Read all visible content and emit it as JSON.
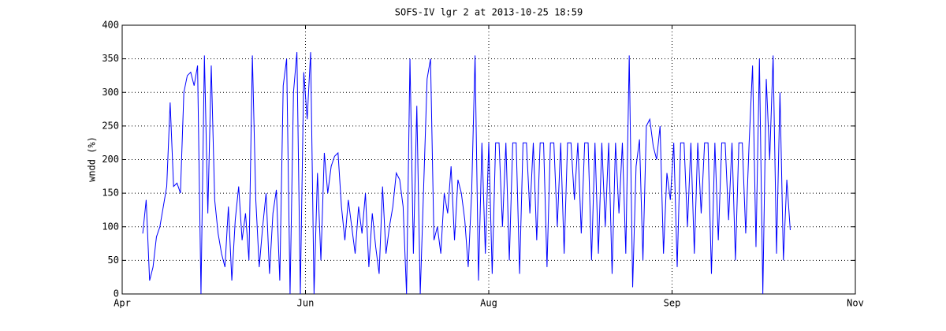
{
  "chart_data": {
    "type": "line",
    "title": "SOFS-IV lgr 2 at 2013-10-25 18:59",
    "y_label": "wndd (%)",
    "x": [
      6,
      7,
      8,
      9,
      10,
      11,
      12,
      13,
      14,
      15,
      16,
      17,
      18,
      19,
      20,
      21,
      22,
      23,
      24,
      25,
      26,
      27,
      28,
      29,
      30,
      31,
      32,
      33,
      34,
      35,
      36,
      37,
      38,
      39,
      40,
      41,
      42,
      43,
      44,
      45,
      46,
      47,
      48,
      49,
      50,
      51,
      52,
      53,
      54,
      55,
      56,
      57,
      58,
      59,
      60,
      61,
      62,
      63,
      64,
      65,
      66,
      67,
      68,
      69,
      70,
      71,
      72,
      73,
      74,
      75,
      76,
      77,
      78,
      79,
      80,
      81,
      82,
      83,
      84,
      85,
      86,
      87,
      88,
      89,
      90,
      91,
      92,
      93,
      94,
      95,
      96,
      97,
      98,
      99,
      100,
      101,
      102,
      103,
      104,
      105,
      106,
      107,
      108,
      109,
      110,
      111,
      112,
      113,
      114,
      115,
      116,
      117,
      118,
      119,
      120,
      121,
      122,
      123,
      124,
      125,
      126,
      127,
      128,
      129,
      130,
      131,
      132,
      133,
      134,
      135,
      136,
      137,
      138,
      139,
      140,
      141,
      142,
      143,
      144,
      145,
      146,
      147,
      148,
      149,
      150,
      151,
      152,
      153,
      154,
      155,
      156,
      157,
      158,
      159,
      160,
      161,
      162,
      163,
      164,
      165,
      166,
      167,
      168,
      169,
      170,
      171,
      172,
      173,
      174,
      175,
      176,
      177,
      178,
      179,
      180,
      181,
      182,
      183,
      184,
      185,
      186,
      187,
      188,
      189,
      190,
      191,
      192,
      193,
      194,
      195
    ],
    "series": [
      {
        "name": "wndd",
        "color": "#0000ff",
        "values": [
          90,
          140,
          20,
          40,
          85,
          100,
          130,
          160,
          285,
          160,
          165,
          150,
          300,
          325,
          330,
          310,
          340,
          0,
          355,
          120,
          340,
          140,
          90,
          60,
          40,
          130,
          20,
          110,
          160,
          80,
          120,
          50,
          355,
          140,
          40,
          100,
          150,
          30,
          120,
          155,
          20,
          310,
          350,
          0,
          300,
          360,
          0,
          330,
          260,
          360,
          0,
          180,
          50,
          210,
          150,
          190,
          205,
          210,
          130,
          80,
          140,
          100,
          60,
          130,
          90,
          150,
          40,
          120,
          70,
          30,
          160,
          60,
          100,
          130,
          180,
          170,
          130,
          0,
          350,
          60,
          280,
          0,
          160,
          320,
          350,
          80,
          100,
          60,
          150,
          120,
          190,
          80,
          170,
          150,
          110,
          40,
          150,
          355,
          20,
          225,
          60,
          225,
          30,
          225,
          225,
          100,
          225,
          50,
          225,
          225,
          30,
          225,
          225,
          120,
          225,
          80,
          225,
          225,
          40,
          225,
          225,
          100,
          225,
          60,
          225,
          225,
          140,
          225,
          90,
          225,
          225,
          50,
          225,
          60,
          225,
          100,
          225,
          30,
          225,
          120,
          225,
          60,
          355,
          10,
          190,
          230,
          50,
          250,
          260,
          220,
          200,
          250,
          60,
          180,
          140,
          225,
          40,
          225,
          225,
          100,
          225,
          60,
          225,
          120,
          225,
          225,
          30,
          225,
          80,
          225,
          225,
          110,
          225,
          50,
          225,
          225,
          90,
          225,
          340,
          70,
          350,
          0,
          320,
          200,
          355,
          60,
          300,
          50,
          170,
          95
        ]
      }
    ],
    "xlim": [
      0,
      214
    ],
    "xticks": [
      {
        "value": 0,
        "label": "Apr"
      },
      {
        "value": 53.5,
        "label": "Jun"
      },
      {
        "value": 107,
        "label": "Aug"
      },
      {
        "value": 160.5,
        "label": "Sep"
      },
      {
        "value": 214,
        "label": "Nov"
      }
    ],
    "ylim": [
      0,
      400
    ],
    "yticks": [
      0,
      50,
      100,
      150,
      200,
      250,
      300,
      350,
      400
    ],
    "grid": true
  }
}
